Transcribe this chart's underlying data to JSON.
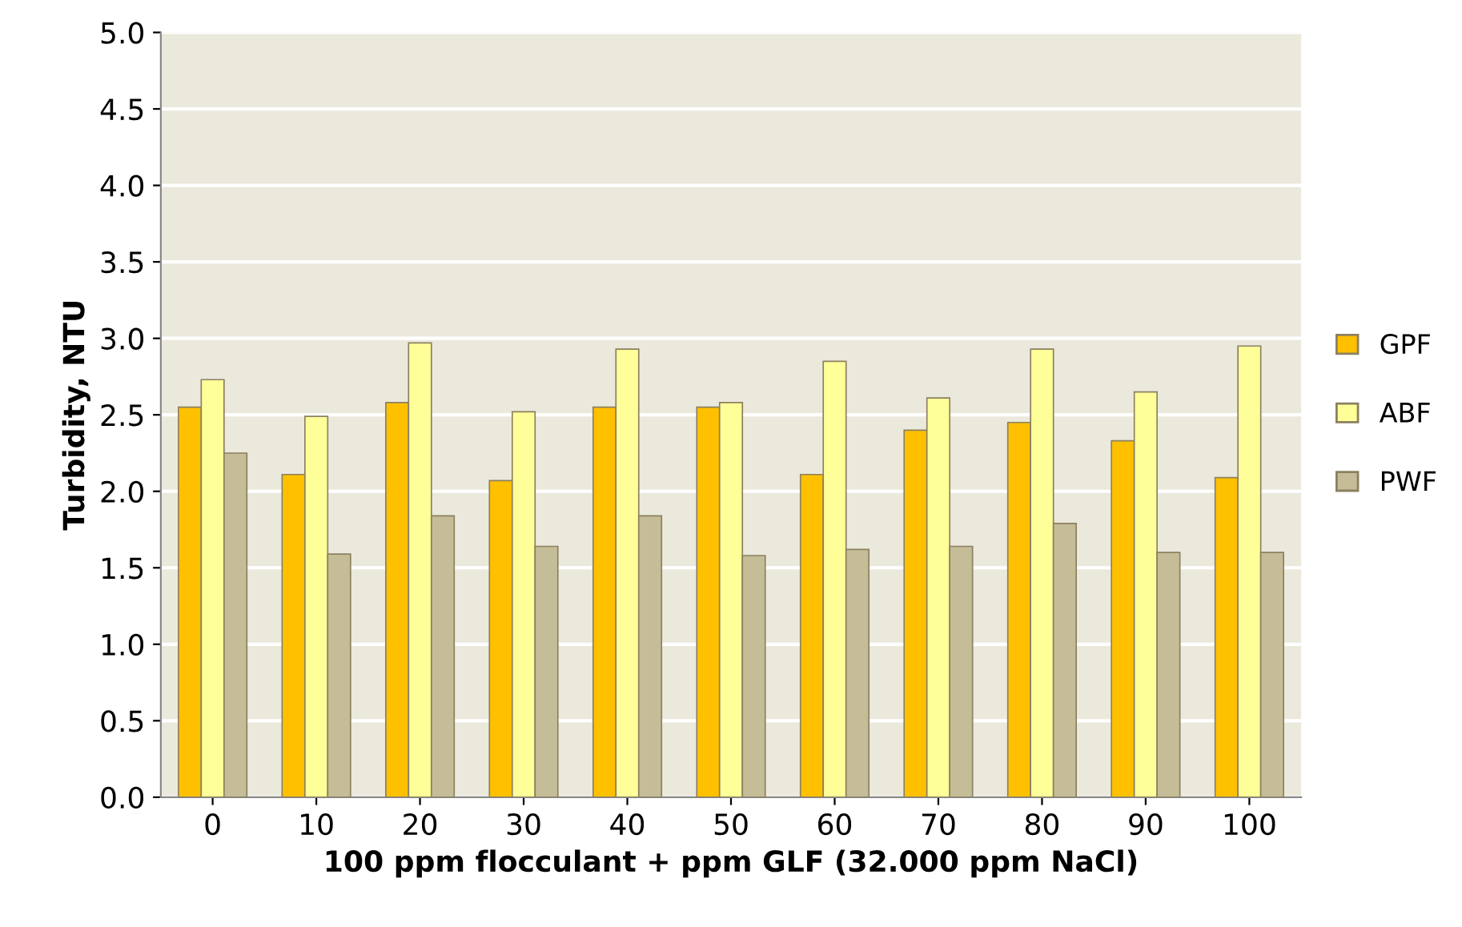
{
  "chart_data": {
    "type": "bar",
    "xlabel": "100 ppm flocculant + ppm GLF (32.000 ppm NaCl)",
    "ylabel": "Turbidity, NTU",
    "categories": [
      "0",
      "10",
      "20",
      "30",
      "40",
      "50",
      "60",
      "70",
      "80",
      "90",
      "100"
    ],
    "series": [
      {
        "name": "GPF",
        "color": "#ffc000",
        "values": [
          2.55,
          2.11,
          2.58,
          2.07,
          2.55,
          2.55,
          2.11,
          2.4,
          2.45,
          2.33,
          2.09
        ]
      },
      {
        "name": "ABF",
        "color": "#ffff99",
        "values": [
          2.73,
          2.49,
          2.97,
          2.52,
          2.93,
          2.58,
          2.85,
          2.61,
          2.93,
          2.65,
          2.95
        ]
      },
      {
        "name": "PWF",
        "color": "#c4bd97",
        "values": [
          2.25,
          1.59,
          1.84,
          1.64,
          1.84,
          1.58,
          1.62,
          1.64,
          1.79,
          1.6,
          1.6
        ]
      }
    ],
    "ylim": [
      0,
      5
    ],
    "yticks": [
      {
        "value": 0,
        "label": "0.0"
      },
      {
        "value": 0.5,
        "label": "0.5"
      },
      {
        "value": 1,
        "label": "1.0"
      },
      {
        "value": 1.5,
        "label": "1.5"
      },
      {
        "value": 2,
        "label": "2.0"
      },
      {
        "value": 2.5,
        "label": "2.5"
      },
      {
        "value": 3,
        "label": "3.0"
      },
      {
        "value": 3.5,
        "label": "3.5"
      },
      {
        "value": 4,
        "label": "4.0"
      },
      {
        "value": 4.5,
        "label": "4.5"
      },
      {
        "value": 5,
        "label": "5.0"
      }
    ],
    "grid": "y",
    "legend": "right"
  }
}
